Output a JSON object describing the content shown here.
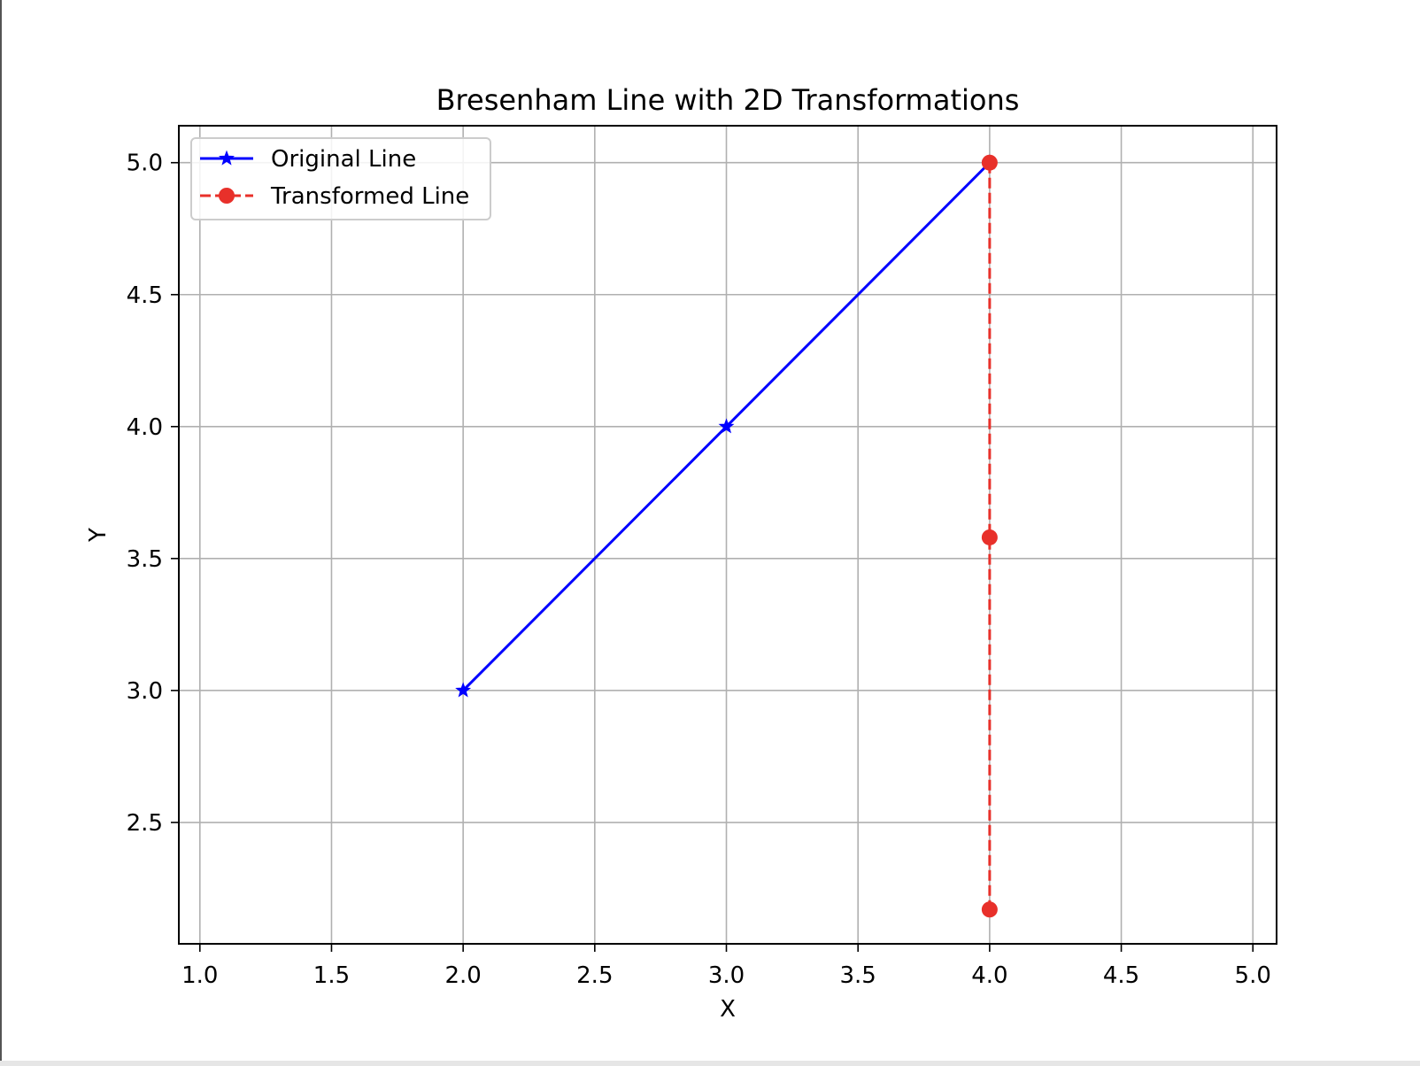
{
  "chart_data": {
    "type": "line",
    "title": "Bresenham Line with 2D Transformations",
    "xlabel": "X",
    "ylabel": "Y",
    "xlim": [
      0.92,
      5.09
    ],
    "ylim": [
      2.04,
      5.14
    ],
    "xticks": [
      "1.0",
      "1.5",
      "2.0",
      "2.5",
      "3.0",
      "3.5",
      "4.0",
      "4.5",
      "5.0"
    ],
    "yticks": [
      "2.5",
      "3.0",
      "3.5",
      "4.0",
      "4.5",
      "5.0"
    ],
    "grid": true,
    "legend_position": "top-left",
    "series": [
      {
        "name": "Original Line",
        "color": "#0000ff",
        "linestyle": "solid",
        "marker": "star",
        "points": [
          [
            2,
            3
          ],
          [
            3,
            4
          ],
          [
            4,
            5
          ]
        ]
      },
      {
        "name": "Transformed Line",
        "color": "#e8302a",
        "linestyle": "dashed",
        "marker": "circle",
        "points": [
          [
            4,
            5
          ],
          [
            4,
            3.58
          ],
          [
            4,
            2.17
          ]
        ]
      }
    ]
  }
}
